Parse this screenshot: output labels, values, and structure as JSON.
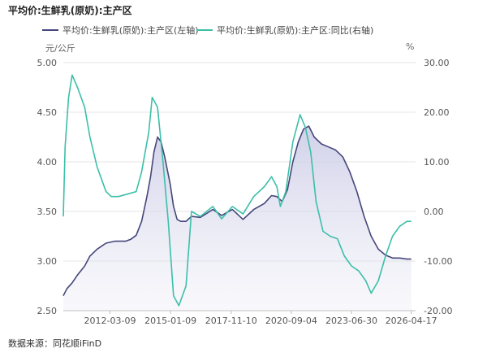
{
  "title": "平均价:生鲜乳(原奶):主产区",
  "source": "数据来源：同花顺iFinD",
  "chart_data": {
    "type": "line",
    "title": "平均价:生鲜乳(原奶):主产区",
    "y_left": {
      "unit_label": "元/公斤",
      "ylim": [
        2.5,
        5.0
      ],
      "ticks": [
        "5.00",
        "4.50",
        "4.00",
        "3.50",
        "3.00",
        "2.50"
      ]
    },
    "y_right": {
      "unit_label": "%",
      "ylim": [
        -20,
        30
      ],
      "ticks": [
        "30.00",
        "20.00",
        "10.00",
        "0.00",
        "-10.00",
        "-20.00"
      ]
    },
    "x_ticks": [
      "2012-03-09",
      "2015-01-09",
      "2017-11-10",
      "2020-09-04",
      "2023-06-30",
      "2026-04-17"
    ],
    "x_range": [
      "2010-01-01",
      "2026-06-30"
    ],
    "grid": "horizontal",
    "legend_position": "top",
    "series": [
      {
        "name": "平均价:生鲜乳(原奶):主产区(左轴)",
        "axis": "left",
        "color": "#45467a",
        "fill": true,
        "points": [
          [
            "2010-01-01",
            2.65
          ],
          [
            "2010-03-01",
            2.72
          ],
          [
            "2010-06-01",
            2.78
          ],
          [
            "2010-09-01",
            2.86
          ],
          [
            "2011-01-01",
            2.95
          ],
          [
            "2011-04-01",
            3.05
          ],
          [
            "2011-08-01",
            3.12
          ],
          [
            "2012-01-01",
            3.18
          ],
          [
            "2012-06-01",
            3.2
          ],
          [
            "2012-12-01",
            3.2
          ],
          [
            "2013-03-01",
            3.22
          ],
          [
            "2013-06-01",
            3.26
          ],
          [
            "2013-09-01",
            3.4
          ],
          [
            "2013-12-01",
            3.65
          ],
          [
            "2014-02-01",
            3.85
          ],
          [
            "2014-04-01",
            4.1
          ],
          [
            "2014-06-01",
            4.25
          ],
          [
            "2014-08-01",
            4.2
          ],
          [
            "2014-10-01",
            4.05
          ],
          [
            "2015-01-01",
            3.78
          ],
          [
            "2015-03-01",
            3.55
          ],
          [
            "2015-05-01",
            3.42
          ],
          [
            "2015-07-01",
            3.4
          ],
          [
            "2015-10-01",
            3.4
          ],
          [
            "2016-01-01",
            3.45
          ],
          [
            "2016-06-01",
            3.44
          ],
          [
            "2017-01-01",
            3.52
          ],
          [
            "2017-06-01",
            3.46
          ],
          [
            "2017-12-01",
            3.52
          ],
          [
            "2018-06-01",
            3.42
          ],
          [
            "2018-12-01",
            3.52
          ],
          [
            "2019-06-01",
            3.58
          ],
          [
            "2019-10-01",
            3.66
          ],
          [
            "2020-01-01",
            3.65
          ],
          [
            "2020-04-01",
            3.6
          ],
          [
            "2020-07-01",
            3.72
          ],
          [
            "2020-10-01",
            4.0
          ],
          [
            "2021-01-01",
            4.2
          ],
          [
            "2021-04-01",
            4.33
          ],
          [
            "2021-07-01",
            4.36
          ],
          [
            "2021-10-01",
            4.25
          ],
          [
            "2022-02-01",
            4.18
          ],
          [
            "2022-06-01",
            4.15
          ],
          [
            "2022-10-01",
            4.12
          ],
          [
            "2023-02-01",
            4.05
          ],
          [
            "2023-06-01",
            3.9
          ],
          [
            "2023-10-01",
            3.7
          ],
          [
            "2024-02-01",
            3.45
          ],
          [
            "2024-06-01",
            3.25
          ],
          [
            "2024-10-01",
            3.12
          ],
          [
            "2025-02-01",
            3.06
          ],
          [
            "2025-06-01",
            3.03
          ],
          [
            "2025-10-01",
            3.03
          ],
          [
            "2026-02-01",
            3.02
          ],
          [
            "2026-04-17",
            3.02
          ]
        ]
      },
      {
        "name": "平均价:生鲜乳(原奶):主产区:同比(右轴)",
        "axis": "right",
        "color": "#3bbfa8",
        "fill": false,
        "points": [
          [
            "2010-01-01",
            -1
          ],
          [
            "2010-02-01",
            13
          ],
          [
            "2010-04-01",
            23
          ],
          [
            "2010-06-01",
            27.5
          ],
          [
            "2010-09-01",
            25
          ],
          [
            "2011-01-01",
            21
          ],
          [
            "2011-04-01",
            15
          ],
          [
            "2011-08-01",
            9
          ],
          [
            "2012-01-01",
            4
          ],
          [
            "2012-04-01",
            3
          ],
          [
            "2012-08-01",
            3
          ],
          [
            "2013-01-01",
            3.5
          ],
          [
            "2013-06-01",
            4
          ],
          [
            "2013-09-01",
            8
          ],
          [
            "2014-01-01",
            16
          ],
          [
            "2014-03-01",
            23
          ],
          [
            "2014-06-01",
            21
          ],
          [
            "2014-09-01",
            10
          ],
          [
            "2014-12-01",
            -2
          ],
          [
            "2015-03-01",
            -17
          ],
          [
            "2015-06-01",
            -19
          ],
          [
            "2015-10-01",
            -15
          ],
          [
            "2016-01-01",
            0
          ],
          [
            "2016-06-01",
            -1
          ],
          [
            "2017-01-01",
            1
          ],
          [
            "2017-06-01",
            -1.5
          ],
          [
            "2017-12-01",
            1
          ],
          [
            "2018-06-01",
            -0.5
          ],
          [
            "2018-12-01",
            3
          ],
          [
            "2019-06-01",
            5
          ],
          [
            "2019-10-01",
            7
          ],
          [
            "2020-01-01",
            5
          ],
          [
            "2020-03-01",
            1
          ],
          [
            "2020-06-01",
            4
          ],
          [
            "2020-10-01",
            14
          ],
          [
            "2021-02-01",
            19.5
          ],
          [
            "2021-05-01",
            17
          ],
          [
            "2021-08-01",
            12
          ],
          [
            "2021-11-01",
            2
          ],
          [
            "2022-03-01",
            -4
          ],
          [
            "2022-07-01",
            -5
          ],
          [
            "2022-11-01",
            -5.5
          ],
          [
            "2023-03-01",
            -9
          ],
          [
            "2023-07-01",
            -11
          ],
          [
            "2023-11-01",
            -12
          ],
          [
            "2024-03-01",
            -14
          ],
          [
            "2024-06-01",
            -16.5
          ],
          [
            "2024-10-01",
            -14
          ],
          [
            "2025-02-01",
            -9
          ],
          [
            "2025-06-01",
            -5
          ],
          [
            "2025-10-01",
            -3
          ],
          [
            "2026-02-01",
            -2
          ],
          [
            "2026-04-17",
            -2
          ]
        ]
      }
    ]
  }
}
